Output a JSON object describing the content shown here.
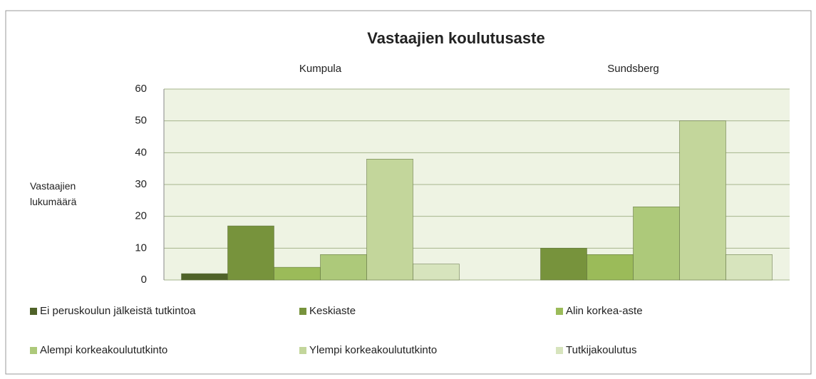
{
  "chart_data": {
    "type": "bar",
    "title": "Vastaajien koulutusaste",
    "y_label": "Vastaajien lukumäärä",
    "categories": [
      "Kumpula",
      "Sundsberg"
    ],
    "series": [
      {
        "name": "Ei peruskoulun jälkeistä tutkintoa",
        "color": "#4f6228",
        "values": [
          2,
          0
        ]
      },
      {
        "name": "Keskiaste",
        "color": "#77933c",
        "values": [
          17,
          10
        ]
      },
      {
        "name": "Alin korkea-aste",
        "color": "#9bbb59",
        "values": [
          4,
          8
        ]
      },
      {
        "name": "Alempi korkeakoulututkinto",
        "color": "#adc97a",
        "values": [
          8,
          23
        ]
      },
      {
        "name": "Ylempi korkeakoulututkinto",
        "color": "#c3d69b",
        "values": [
          38,
          50
        ]
      },
      {
        "name": "Tutkijakoulutus",
        "color": "#d7e4bd",
        "values": [
          5,
          8
        ]
      }
    ],
    "ylim": [
      0,
      60
    ],
    "yticks": [
      0,
      10,
      20,
      30,
      40,
      50,
      60
    ],
    "grid": true,
    "legend": "bottom"
  }
}
